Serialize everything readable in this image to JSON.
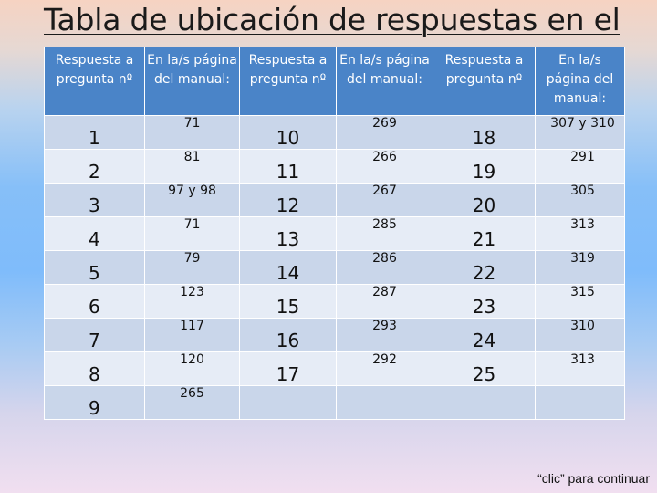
{
  "title": "Tabla de ubicación de respuestas en el",
  "table": {
    "headers": [
      "Respuesta a pregunta nº",
      "En la/s página del manual:",
      "Respuesta a pregunta nº",
      "En la/s página del manual:",
      "Respuesta a pregunta nº",
      "En la/s página del manual:"
    ],
    "rows": [
      [
        "1",
        "71",
        "10",
        "269",
        "18",
        "307 y 310"
      ],
      [
        "2",
        "81",
        "11",
        "266",
        "19",
        "291"
      ],
      [
        "3",
        "97 y 98",
        "12",
        "267",
        "20",
        "305"
      ],
      [
        "4",
        "71",
        "13",
        "285",
        "21",
        "313"
      ],
      [
        "5",
        "79",
        "14",
        "286",
        "22",
        "319"
      ],
      [
        "6",
        "123",
        "15",
        "287",
        "23",
        "315"
      ],
      [
        "7",
        "117",
        "16",
        "293",
        "24",
        "310"
      ],
      [
        "8",
        "120",
        "17",
        "292",
        "25",
        "313"
      ],
      [
        "9",
        "265",
        "",
        "",
        "",
        ""
      ]
    ]
  },
  "continue_label": "“clic” para continuar"
}
